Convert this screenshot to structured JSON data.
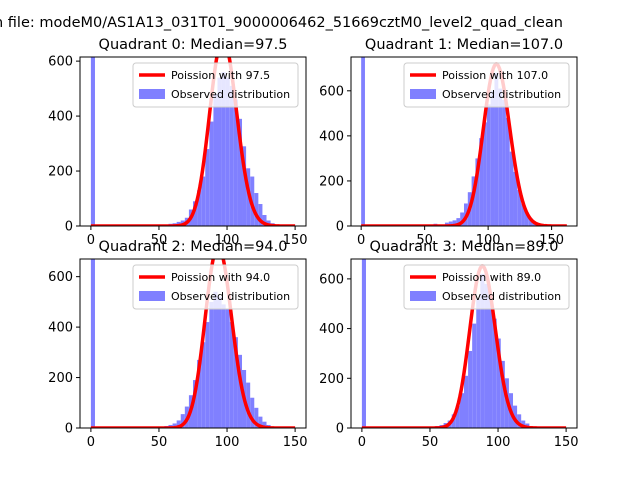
{
  "figure": {
    "suptitle": "n file: modeM0/AS1A13_031T01_9000006462_51669cztM0_level2_quad_clean"
  },
  "colors": {
    "hist_fill": "#8080ff",
    "poisson_line": "#ff0000",
    "background": "#ffffff"
  },
  "chart_data": [
    {
      "type": "bar",
      "title": "Quadrant 0: Median=97.5",
      "xlabel": "",
      "ylabel": "",
      "xlim": [
        -8,
        158
      ],
      "ylim": [
        0,
        615
      ],
      "xticks": [
        0,
        50,
        100,
        150
      ],
      "yticks": [
        0,
        200,
        400,
        600
      ],
      "grid": false,
      "legend_position": "upper-right",
      "series": [
        {
          "name": "Poission with 97.5",
          "kind": "line",
          "mean": 97.5
        },
        {
          "name": "Observed distribution",
          "kind": "histogram",
          "bin_width": 3,
          "bins": [
            [
              0,
              3,
              615
            ],
            [
              57,
              60,
              8
            ],
            [
              60,
              63,
              10
            ],
            [
              63,
              66,
              15
            ],
            [
              66,
              69,
              20
            ],
            [
              69,
              72,
              30
            ],
            [
              72,
              75,
              60
            ],
            [
              75,
              78,
              90
            ],
            [
              78,
              81,
              130
            ],
            [
              81,
              84,
              180
            ],
            [
              84,
              87,
              280
            ],
            [
              87,
              90,
              380
            ],
            [
              90,
              93,
              480
            ],
            [
              93,
              96,
              540
            ],
            [
              96,
              99,
              560
            ],
            [
              99,
              102,
              540
            ],
            [
              102,
              105,
              510
            ],
            [
              105,
              108,
              460
            ],
            [
              108,
              111,
              390
            ],
            [
              111,
              114,
              290
            ],
            [
              114,
              117,
              210
            ],
            [
              117,
              120,
              180
            ],
            [
              120,
              123,
              120
            ],
            [
              123,
              126,
              80
            ],
            [
              126,
              129,
              40
            ],
            [
              129,
              132,
              20
            ],
            [
              132,
              135,
              10
            ]
          ]
        }
      ]
    },
    {
      "type": "bar",
      "title": "Quadrant 1: Median=107.0",
      "xlabel": "",
      "ylabel": "",
      "xlim": [
        -8,
        170
      ],
      "ylim": [
        0,
        750
      ],
      "xticks": [
        0,
        50,
        100,
        150
      ],
      "yticks": [
        0,
        200,
        400,
        600
      ],
      "grid": false,
      "legend_position": "upper-right",
      "series": [
        {
          "name": "Poission with 107.0",
          "kind": "line",
          "mean": 107.0
        },
        {
          "name": "Observed distribution",
          "kind": "histogram",
          "bin_width": 3,
          "bins": [
            [
              0,
              3,
              750
            ],
            [
              57,
              60,
              10
            ],
            [
              66,
              69,
              15
            ],
            [
              69,
              72,
              20
            ],
            [
              72,
              75,
              25
            ],
            [
              75,
              78,
              35
            ],
            [
              78,
              81,
              60
            ],
            [
              81,
              84,
              100
            ],
            [
              84,
              87,
              150
            ],
            [
              87,
              90,
              220
            ],
            [
              90,
              93,
              300
            ],
            [
              93,
              96,
              390
            ],
            [
              96,
              99,
              460
            ],
            [
              99,
              102,
              540
            ],
            [
              102,
              105,
              600
            ],
            [
              105,
              108,
              680
            ],
            [
              108,
              111,
              610
            ],
            [
              111,
              114,
              560
            ],
            [
              114,
              117,
              480
            ],
            [
              117,
              120,
              330
            ],
            [
              120,
              123,
              240
            ],
            [
              123,
              126,
              160
            ],
            [
              126,
              129,
              100
            ],
            [
              129,
              132,
              60
            ],
            [
              132,
              135,
              35
            ],
            [
              135,
              138,
              20
            ],
            [
              138,
              141,
              12
            ]
          ]
        }
      ]
    },
    {
      "type": "bar",
      "title": "Quadrant 2: Median=94.0",
      "xlabel": "",
      "ylabel": "",
      "xlim": [
        -8,
        158
      ],
      "ylim": [
        0,
        670
      ],
      "xticks": [
        0,
        50,
        100,
        150
      ],
      "yticks": [
        0,
        200,
        400,
        600
      ],
      "grid": false,
      "legend_position": "upper-right",
      "series": [
        {
          "name": "Poission with 94.0",
          "kind": "line",
          "mean": 94.0
        },
        {
          "name": "Observed distribution",
          "kind": "histogram",
          "bin_width": 3,
          "bins": [
            [
              0,
              3,
              670
            ],
            [
              54,
              57,
              8
            ],
            [
              57,
              60,
              12
            ],
            [
              60,
              63,
              18
            ],
            [
              63,
              66,
              30
            ],
            [
              66,
              69,
              55
            ],
            [
              69,
              72,
              85
            ],
            [
              72,
              75,
              130
            ],
            [
              75,
              78,
              190
            ],
            [
              78,
              81,
              270
            ],
            [
              81,
              84,
              340
            ],
            [
              84,
              87,
              420
            ],
            [
              87,
              90,
              500
            ],
            [
              90,
              93,
              540
            ],
            [
              93,
              96,
              520
            ],
            [
              96,
              99,
              490
            ],
            [
              99,
              102,
              470
            ],
            [
              102,
              105,
              420
            ],
            [
              105,
              108,
              360
            ],
            [
              108,
              111,
              290
            ],
            [
              111,
              114,
              230
            ],
            [
              114,
              117,
              180
            ],
            [
              117,
              120,
              120
            ],
            [
              120,
              123,
              80
            ],
            [
              123,
              126,
              45
            ],
            [
              126,
              129,
              25
            ],
            [
              129,
              132,
              12
            ]
          ]
        }
      ]
    },
    {
      "type": "bar",
      "title": "Quadrant 3: Median=89.0",
      "xlabel": "",
      "ylabel": "",
      "xlim": [
        -8,
        158
      ],
      "ylim": [
        0,
        680
      ],
      "xticks": [
        0,
        50,
        100,
        150
      ],
      "yticks": [
        0,
        200,
        400,
        600
      ],
      "grid": false,
      "legend_position": "upper-right",
      "series": [
        {
          "name": "Poission with 89.0",
          "kind": "line",
          "mean": 89.0
        },
        {
          "name": "Observed distribution",
          "kind": "histogram",
          "bin_width": 3,
          "bins": [
            [
              0,
              3,
              680
            ],
            [
              54,
              57,
              8
            ],
            [
              57,
              60,
              12
            ],
            [
              60,
              63,
              20
            ],
            [
              63,
              66,
              30
            ],
            [
              66,
              69,
              55
            ],
            [
              69,
              72,
              90
            ],
            [
              72,
              75,
              140
            ],
            [
              75,
              78,
              210
            ],
            [
              78,
              81,
              310
            ],
            [
              81,
              84,
              420
            ],
            [
              84,
              87,
              520
            ],
            [
              87,
              90,
              620
            ],
            [
              90,
              93,
              580
            ],
            [
              93,
              96,
              520
            ],
            [
              96,
              99,
              440
            ],
            [
              99,
              102,
              360
            ],
            [
              102,
              105,
              270
            ],
            [
              105,
              108,
              200
            ],
            [
              108,
              111,
              140
            ],
            [
              111,
              114,
              90
            ],
            [
              114,
              117,
              55
            ],
            [
              117,
              120,
              30
            ],
            [
              120,
              123,
              18
            ]
          ]
        }
      ]
    }
  ]
}
